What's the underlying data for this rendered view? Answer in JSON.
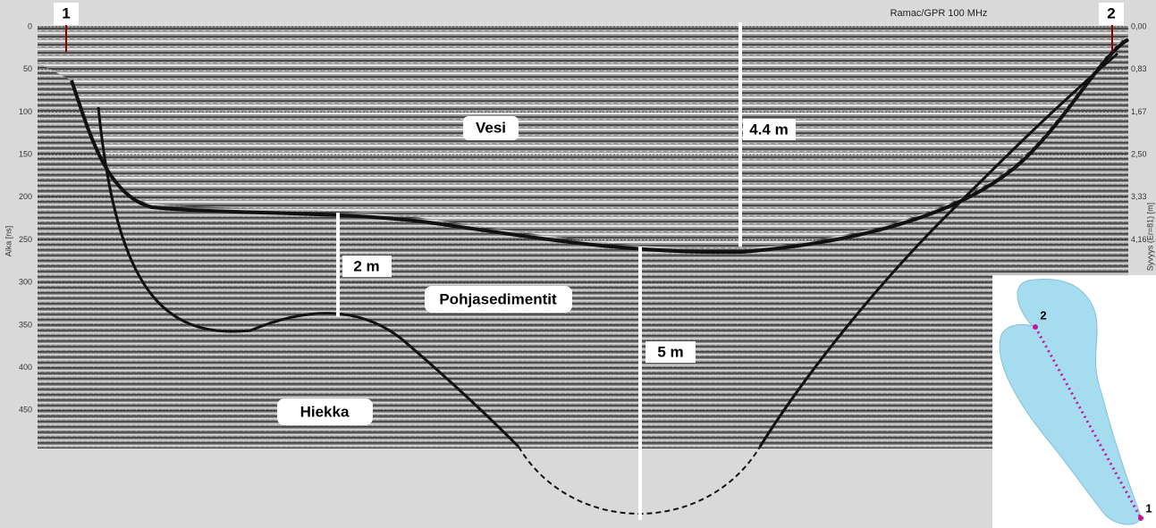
{
  "header": {
    "marker_left": "1",
    "marker_right": "2",
    "instrument": "Ramac/GPR 100 MHz"
  },
  "axes": {
    "left_label": "Aika [ns]",
    "right_label": "Syvyys (Er=81) [m]",
    "left_ticks": [
      "0",
      "50",
      "100",
      "150",
      "200",
      "250",
      "300",
      "350",
      "400",
      "450"
    ],
    "right_ticks": [
      "0,00",
      "0,83",
      "1,67",
      "2,50",
      "3,33",
      "4,16"
    ]
  },
  "annotations": {
    "water": "Vesi",
    "water_depth": "4.4 m",
    "sediment_depth": "2 m",
    "sediments": "Pohjasedimentit",
    "total_depth": "5 m",
    "sand": "Hiekka"
  },
  "map": {
    "point_2": "2",
    "point_1": "1"
  }
}
